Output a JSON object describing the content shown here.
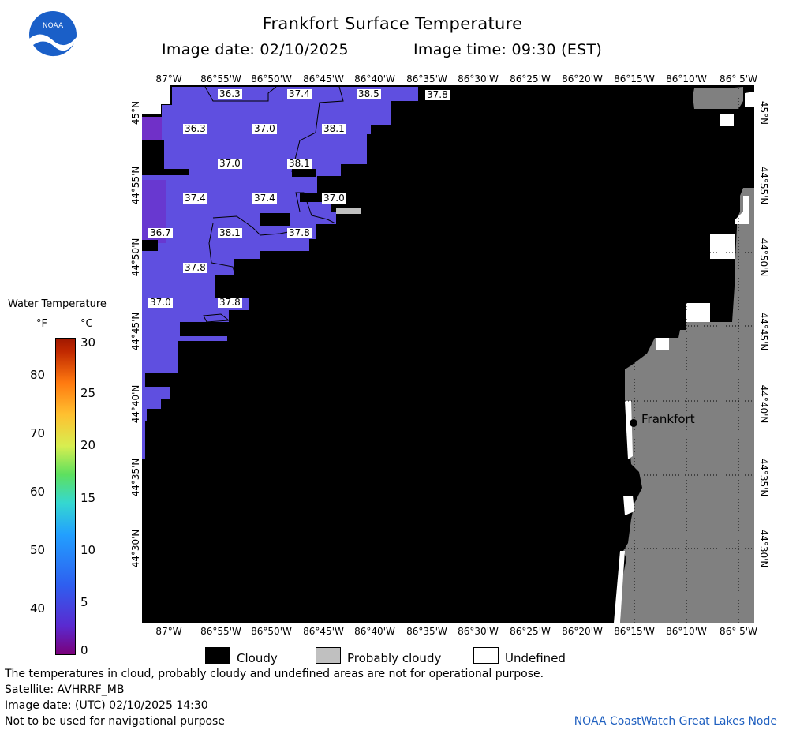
{
  "header": {
    "title": "Frankfort Surface Temperature",
    "image_date": "Image date: 02/10/2025",
    "image_time": "Image time: 09:30 (EST)"
  },
  "logo": {
    "text": "NOAA"
  },
  "map": {
    "lon_ticks": [
      "87°W",
      "86°55'W",
      "86°50'W",
      "86°45'W",
      "86°40'W",
      "86°35'W",
      "86°30'W",
      "86°25'W",
      "86°20'W",
      "86°15'W",
      "86°10'W",
      "86° 5'W"
    ],
    "lat_ticks": [
      "45°N",
      "44°55'N",
      "44°50'N",
      "44°45'N",
      "44°40'N",
      "44°35'N",
      "44°30'N"
    ],
    "temperature_labels": [
      "36.3",
      "37.4",
      "38.5",
      "37.8",
      "36.3",
      "37.0",
      "38.1",
      "37.0",
      "38.1",
      "37.4",
      "37.4",
      "37.0",
      "36.7",
      "38.1",
      "37.8",
      "37.8",
      "37.0",
      "37.8"
    ],
    "city": "Frankfort",
    "colors": {
      "water": "#5f4fe0",
      "water_dark": "#7030c8",
      "cloud": "#000000",
      "land": "#808080",
      "probably_cloudy": "#c0c0c0",
      "undefined": "#ffffff"
    }
  },
  "colorbar": {
    "title": "Water Temperature",
    "unit_f": "°F",
    "unit_c": "°C",
    "f_ticks": [
      "80",
      "70",
      "60",
      "50",
      "40"
    ],
    "c_ticks": [
      "30",
      "25",
      "20",
      "15",
      "10",
      "5",
      "0"
    ]
  },
  "legend": {
    "cloudy": "Cloudy",
    "probably_cloudy": "Probably cloudy",
    "undefined": "Undefined"
  },
  "footer": {
    "note": "The temperatures in cloud, probably cloudy and undefined areas are not for operational purpose.",
    "satellite": "Satellite: AVHRRF_MB",
    "utc_date": "Image date: (UTC) 02/10/2025  14:30",
    "nav": "Not to be used for navigational purpose",
    "credit": "NOAA CoastWatch Great Lakes Node"
  }
}
